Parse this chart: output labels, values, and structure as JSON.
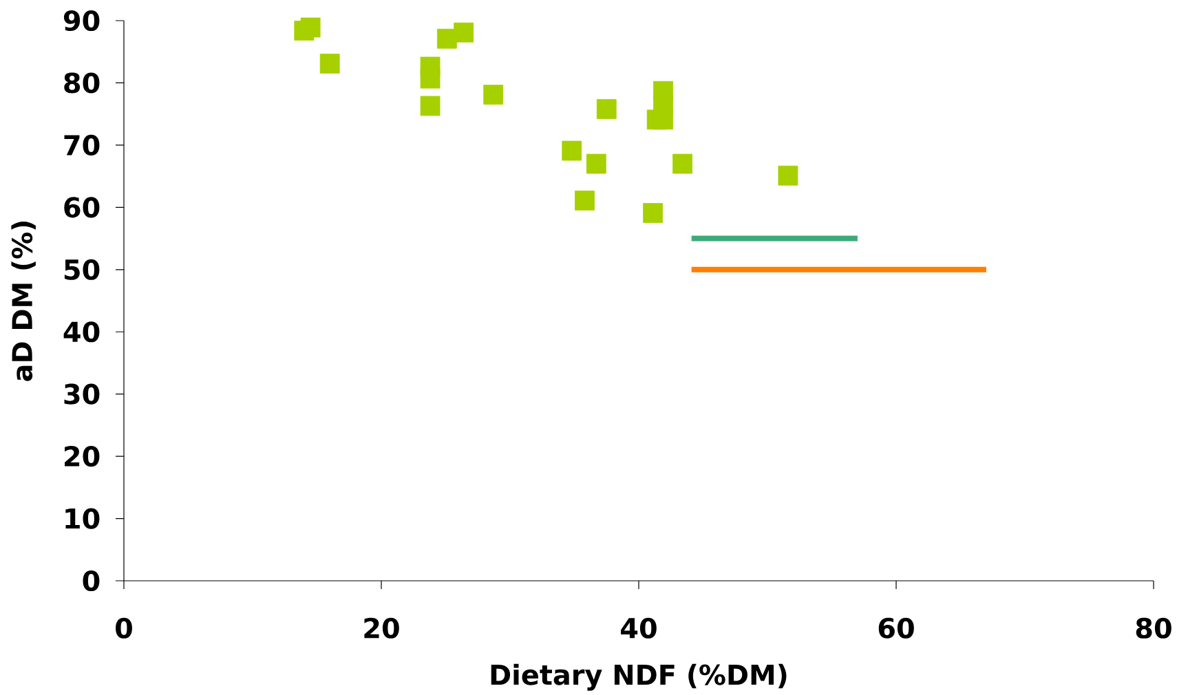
{
  "chart_data": {
    "type": "scatter",
    "xlabel": "Dietary NDF (%DM)",
    "ylabel": "aD DM (%)",
    "xlim": [
      0,
      80
    ],
    "ylim": [
      0,
      90
    ],
    "xticks": [
      0,
      20,
      40,
      60,
      80
    ],
    "yticks": [
      0,
      10,
      20,
      30,
      40,
      50,
      60,
      70,
      80,
      90
    ],
    "grid": false,
    "series": [
      {
        "color": "#a6d000",
        "marker": "square",
        "x": [
          14.0,
          14.5,
          16.0,
          23.8,
          23.8,
          23.8,
          25.1,
          26.4,
          28.7,
          34.8,
          35.8,
          36.7,
          37.5,
          41.1,
          41.4,
          41.9,
          41.9,
          41.9,
          43.4,
          51.6
        ],
        "values": [
          88.4,
          88.9,
          83.1,
          82.6,
          80.7,
          76.3,
          87.1,
          88.1,
          78.1,
          69.1,
          61.1,
          67.0,
          75.8,
          59.1,
          74.1,
          78.7,
          76.3,
          74.1,
          67.0,
          65.1
        ]
      },
      {
        "type": "line",
        "color": "#3daa7a",
        "marker": "none",
        "x": [
          44.1,
          57.0
        ],
        "values": [
          55,
          55
        ]
      },
      {
        "type": "line",
        "color": "#ff7f00",
        "marker": "none",
        "x": [
          44.1,
          67.0
        ],
        "values": [
          50,
          50
        ]
      }
    ]
  }
}
